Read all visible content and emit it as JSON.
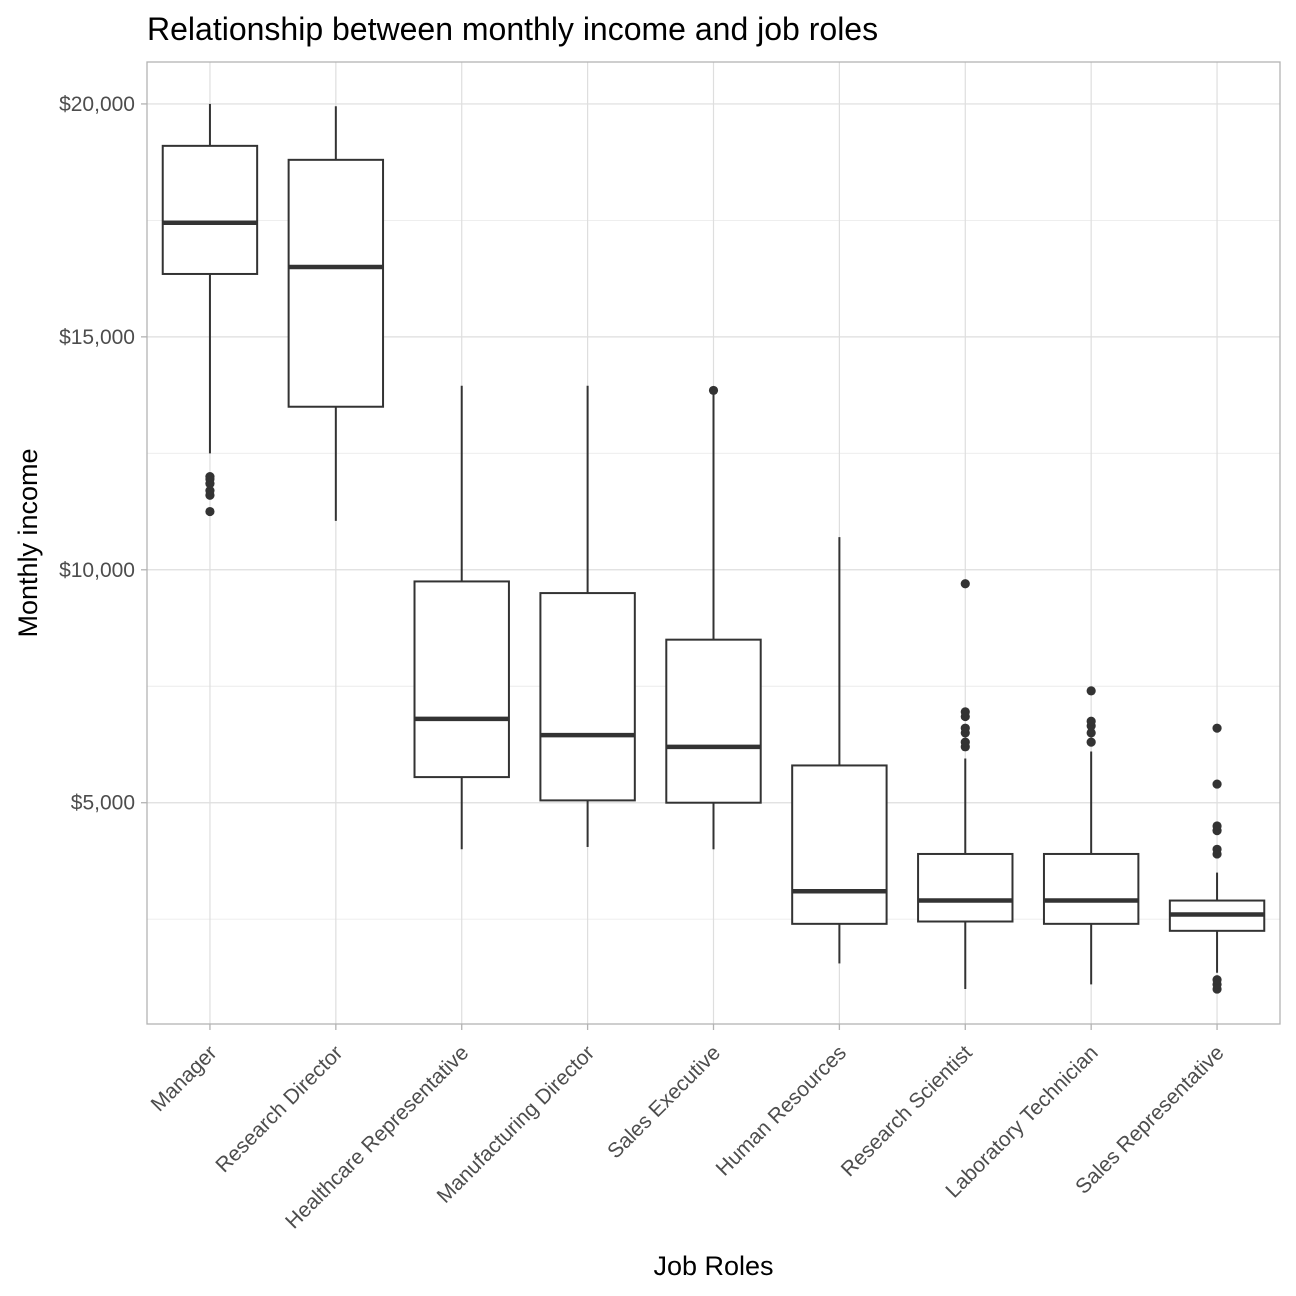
{
  "chart_data": {
    "type": "box",
    "title": "Relationship between monthly income and job roles",
    "xlabel": "Job Roles",
    "ylabel": "Monthly income",
    "ylim": [
      250,
      20900
    ],
    "y_ticks": [
      5000,
      10000,
      15000,
      20000
    ],
    "y_tick_labels": [
      "$5,000",
      "$10,000",
      "$15,000",
      "$20,000"
    ],
    "y_minor_ticks": [
      2500,
      7500,
      12500,
      17500
    ],
    "grid": true,
    "categories": [
      "Manager",
      "Research Director",
      "Healthcare Representative",
      "Manufacturing Director",
      "Sales Executive",
      "Human Resources",
      "Research Scientist",
      "Laboratory Technician",
      "Sales Representative"
    ],
    "boxes": [
      {
        "category": "Manager",
        "whisker_low": 12500,
        "q1": 16350,
        "median": 17450,
        "q3": 19100,
        "whisker_high": 20000,
        "outliers": [
          11250,
          11600,
          11700,
          11850,
          11950,
          12000
        ]
      },
      {
        "category": "Research Director",
        "whisker_low": 11050,
        "q1": 13500,
        "median": 16500,
        "q3": 18800,
        "whisker_high": 19950,
        "outliers": []
      },
      {
        "category": "Healthcare Representative",
        "whisker_low": 4000,
        "q1": 5550,
        "median": 6800,
        "q3": 9750,
        "whisker_high": 13950,
        "outliers": []
      },
      {
        "category": "Manufacturing Director",
        "whisker_low": 4050,
        "q1": 5050,
        "median": 6450,
        "q3": 9500,
        "whisker_high": 13950,
        "outliers": []
      },
      {
        "category": "Sales Executive",
        "whisker_low": 4000,
        "q1": 5000,
        "median": 6200,
        "q3": 8500,
        "whisker_high": 13850,
        "outliers": [
          13850
        ]
      },
      {
        "category": "Human Resources",
        "whisker_low": 1550,
        "q1": 2400,
        "median": 3100,
        "q3": 5800,
        "whisker_high": 10700,
        "outliers": []
      },
      {
        "category": "Research Scientist",
        "whisker_low": 1000,
        "q1": 2450,
        "median": 2900,
        "q3": 3900,
        "whisker_high": 5950,
        "outliers": [
          6200,
          6300,
          6500,
          6600,
          6850,
          6950,
          9700
        ]
      },
      {
        "category": "Laboratory Technician",
        "whisker_low": 1100,
        "q1": 2400,
        "median": 2900,
        "q3": 3900,
        "whisker_high": 6100,
        "outliers": [
          6300,
          6500,
          6650,
          6750,
          7400
        ]
      },
      {
        "category": "Sales Representative",
        "whisker_low": 1350,
        "q1": 2250,
        "median": 2600,
        "q3": 2900,
        "whisker_high": 3500,
        "outliers": [
          1000,
          1100,
          1200,
          3900,
          4000,
          4400,
          4500,
          5400,
          6600
        ]
      }
    ]
  }
}
